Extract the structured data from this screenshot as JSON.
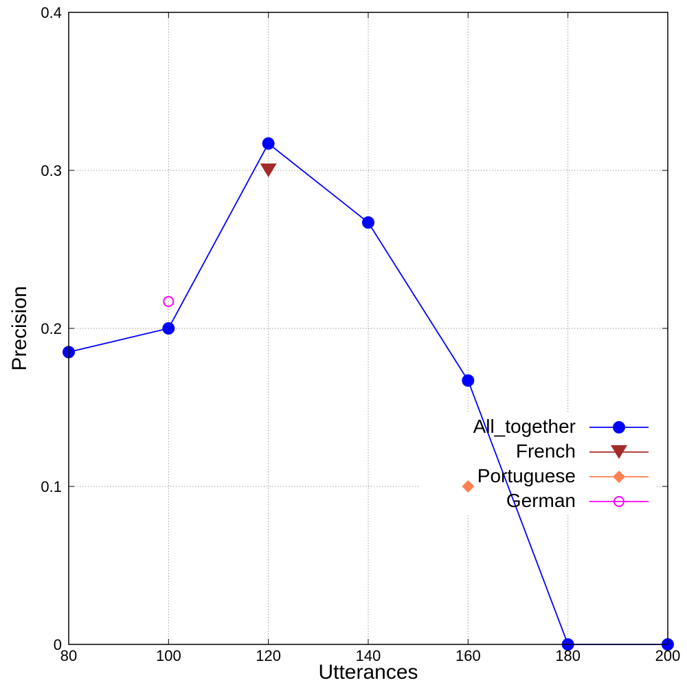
{
  "chart_data": {
    "type": "line",
    "xlabel": "Utterances",
    "ylabel": "Precision",
    "xlim": [
      80,
      200
    ],
    "ylim": [
      0,
      0.4
    ],
    "xticks": [
      80,
      100,
      120,
      140,
      160,
      180,
      200
    ],
    "yticks": [
      0,
      0.1,
      0.2,
      0.3,
      0.4
    ],
    "xtick_labels": [
      "80",
      "100",
      "120",
      "140",
      "160",
      "180",
      "200"
    ],
    "ytick_labels": [
      "0",
      "0.1",
      "0.2",
      "0.3",
      "0.4"
    ],
    "grid": true,
    "legend_position": "right",
    "series": [
      {
        "name": "All_together",
        "color": "#0000ff",
        "marker": "circle-filled",
        "x": [
          80,
          100,
          120,
          140,
          160,
          180,
          200
        ],
        "y": [
          0.185,
          0.2,
          0.317,
          0.267,
          0.167,
          0,
          0
        ]
      },
      {
        "name": "French",
        "color": "#a52a2a",
        "marker": "triangle-down",
        "x": [
          120
        ],
        "y": [
          0.3
        ]
      },
      {
        "name": "Portuguese",
        "color": "#ff7f50",
        "marker": "diamond",
        "x": [
          160
        ],
        "y": [
          0.1
        ]
      },
      {
        "name": "German",
        "color": "#ff00ff",
        "marker": "circle-open",
        "x": [
          100
        ],
        "y": [
          0.217
        ]
      }
    ]
  }
}
